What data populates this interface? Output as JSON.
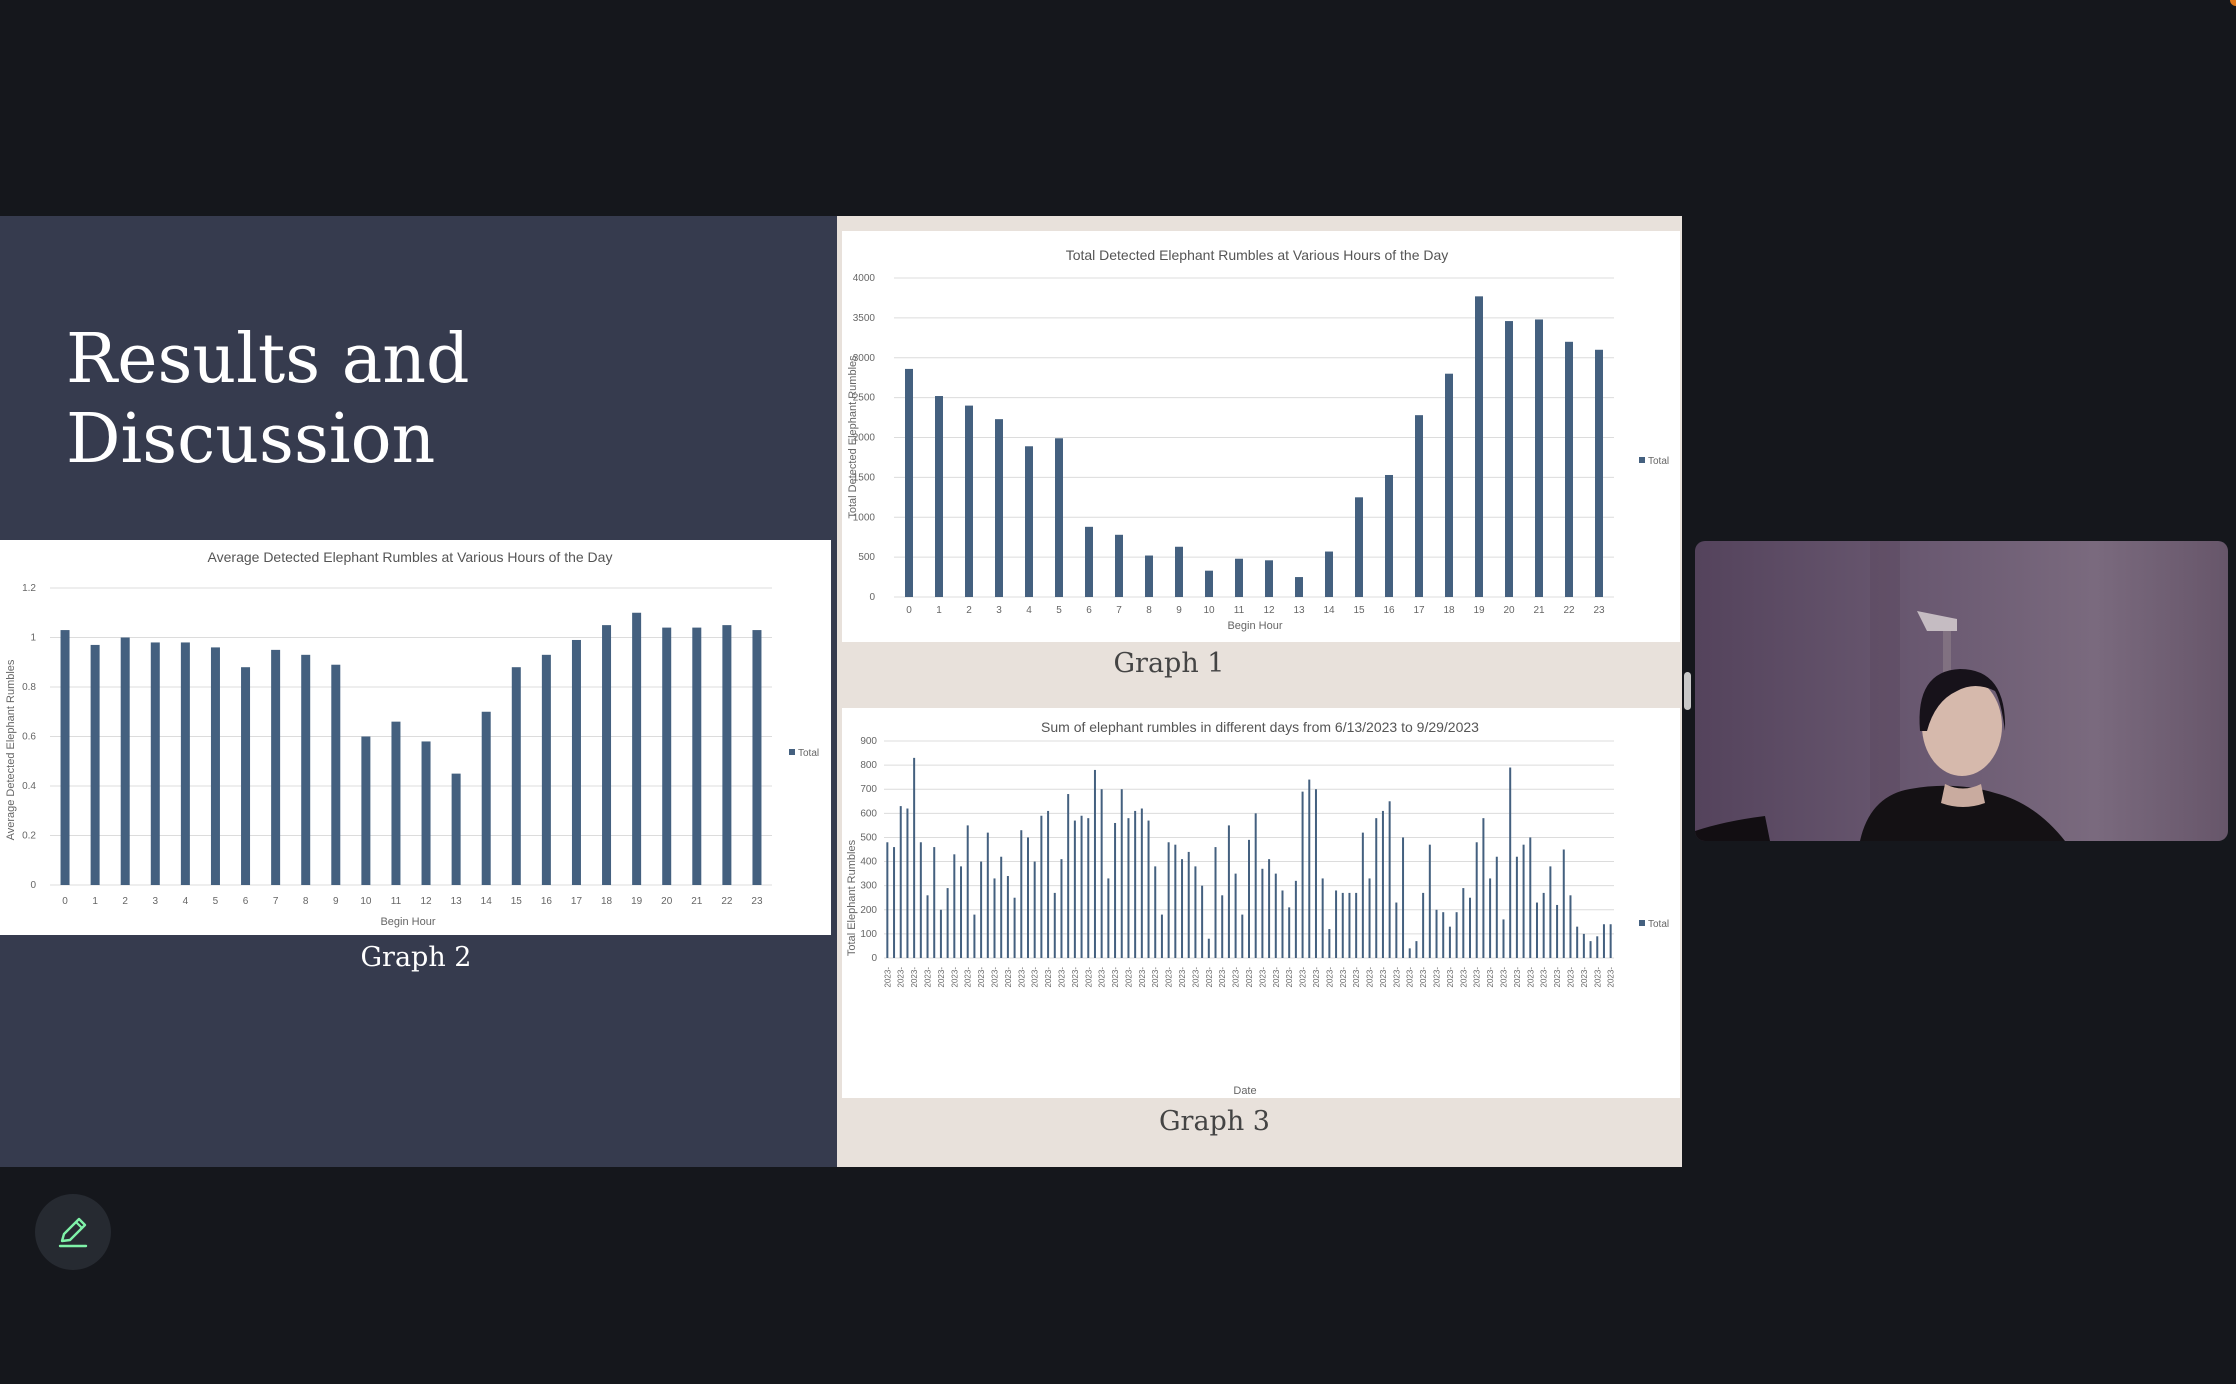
{
  "slide": {
    "title_line1": "Results and",
    "title_line2": "Discussion",
    "graph1_label": "Graph 1",
    "graph2_label": "Graph 2",
    "graph3_label": "Graph 3"
  },
  "colors": {
    "bar": "#44607f",
    "slide_background": "#363b4e",
    "panel_background": "#e8e1db",
    "app_background": "#15171c",
    "pen_icon": "#7ff2a8"
  },
  "icons": {
    "pen_button": "pencil-icon"
  },
  "chart_data": [
    {
      "id": "graph1",
      "type": "bar",
      "title": "Total Detected Elephant Rumbles at Various Hours of the Day",
      "xlabel": "Begin Hour",
      "ylabel": "Total Detected Elephant Rumbles",
      "categories": [
        "0",
        "1",
        "2",
        "3",
        "4",
        "5",
        "6",
        "7",
        "8",
        "9",
        "10",
        "11",
        "12",
        "13",
        "14",
        "15",
        "16",
        "17",
        "18",
        "19",
        "20",
        "21",
        "22",
        "23"
      ],
      "series": [
        {
          "name": "Total",
          "values": [
            2860,
            2520,
            2400,
            2230,
            1890,
            1990,
            880,
            780,
            520,
            630,
            330,
            480,
            460,
            250,
            570,
            1250,
            1530,
            2280,
            2800,
            3770,
            3460,
            3480,
            3200,
            3100
          ]
        }
      ],
      "ylim": [
        0,
        4000
      ],
      "yticks": [
        0,
        500,
        1000,
        1500,
        2000,
        2500,
        3000,
        3500,
        4000
      ],
      "grid": true,
      "legend": "right"
    },
    {
      "id": "graph2",
      "type": "bar",
      "title": "Average Detected Elephant Rumbles at Various Hours of the Day",
      "xlabel": "Begin Hour",
      "ylabel": "Average Detected Elephant Rumbles",
      "categories": [
        "0",
        "1",
        "2",
        "3",
        "4",
        "5",
        "6",
        "7",
        "8",
        "9",
        "10",
        "11",
        "12",
        "13",
        "14",
        "15",
        "16",
        "17",
        "18",
        "19",
        "20",
        "21",
        "22",
        "23"
      ],
      "series": [
        {
          "name": "Total",
          "values": [
            1.03,
            0.97,
            1.0,
            0.98,
            0.98,
            0.96,
            0.88,
            0.95,
            0.93,
            0.89,
            0.6,
            0.66,
            0.58,
            0.45,
            0.7,
            0.88,
            0.93,
            0.99,
            1.05,
            1.1,
            1.04,
            1.04,
            1.05,
            1.03
          ]
        }
      ],
      "ylim": [
        0,
        1.2
      ],
      "yticks": [
        "0",
        "0.2",
        "0.4",
        "0.6",
        "0.8",
        "1",
        "1.2"
      ],
      "grid": true,
      "legend": "right"
    },
    {
      "id": "graph3",
      "type": "bar",
      "title": "Sum of elephant rumbles  in different days from 6/13/2023 to 9/29/2023",
      "xlabel": "Date",
      "ylabel": "Total Elephant Rumbles",
      "tick_label": "2023-",
      "series": [
        {
          "name": "Total",
          "values": [
            480,
            460,
            630,
            620,
            830,
            480,
            260,
            460,
            200,
            290,
            430,
            380,
            550,
            180,
            400,
            520,
            330,
            420,
            340,
            250,
            530,
            500,
            400,
            590,
            610,
            270,
            410,
            680,
            570,
            590,
            580,
            780,
            700,
            330,
            560,
            700,
            580,
            610,
            620,
            570,
            380,
            180,
            480,
            470,
            410,
            440,
            380,
            300,
            80,
            460,
            260,
            550,
            350,
            180,
            490,
            600,
            370,
            410,
            350,
            280,
            210,
            320,
            690,
            740,
            700,
            330,
            120,
            280,
            270,
            270,
            270,
            520,
            330,
            580,
            610,
            650,
            230,
            500,
            40,
            70,
            270,
            470,
            200,
            190,
            130,
            190,
            290,
            250,
            480,
            580,
            330,
            420,
            160,
            790,
            420,
            470,
            500,
            230,
            270,
            380,
            220,
            450,
            260,
            130,
            100,
            70,
            90,
            140,
            140
          ]
        }
      ],
      "ylim": [
        0,
        900
      ],
      "yticks": [
        0,
        100,
        200,
        300,
        400,
        500,
        600,
        700,
        800,
        900
      ],
      "grid": true,
      "legend": "right"
    }
  ]
}
